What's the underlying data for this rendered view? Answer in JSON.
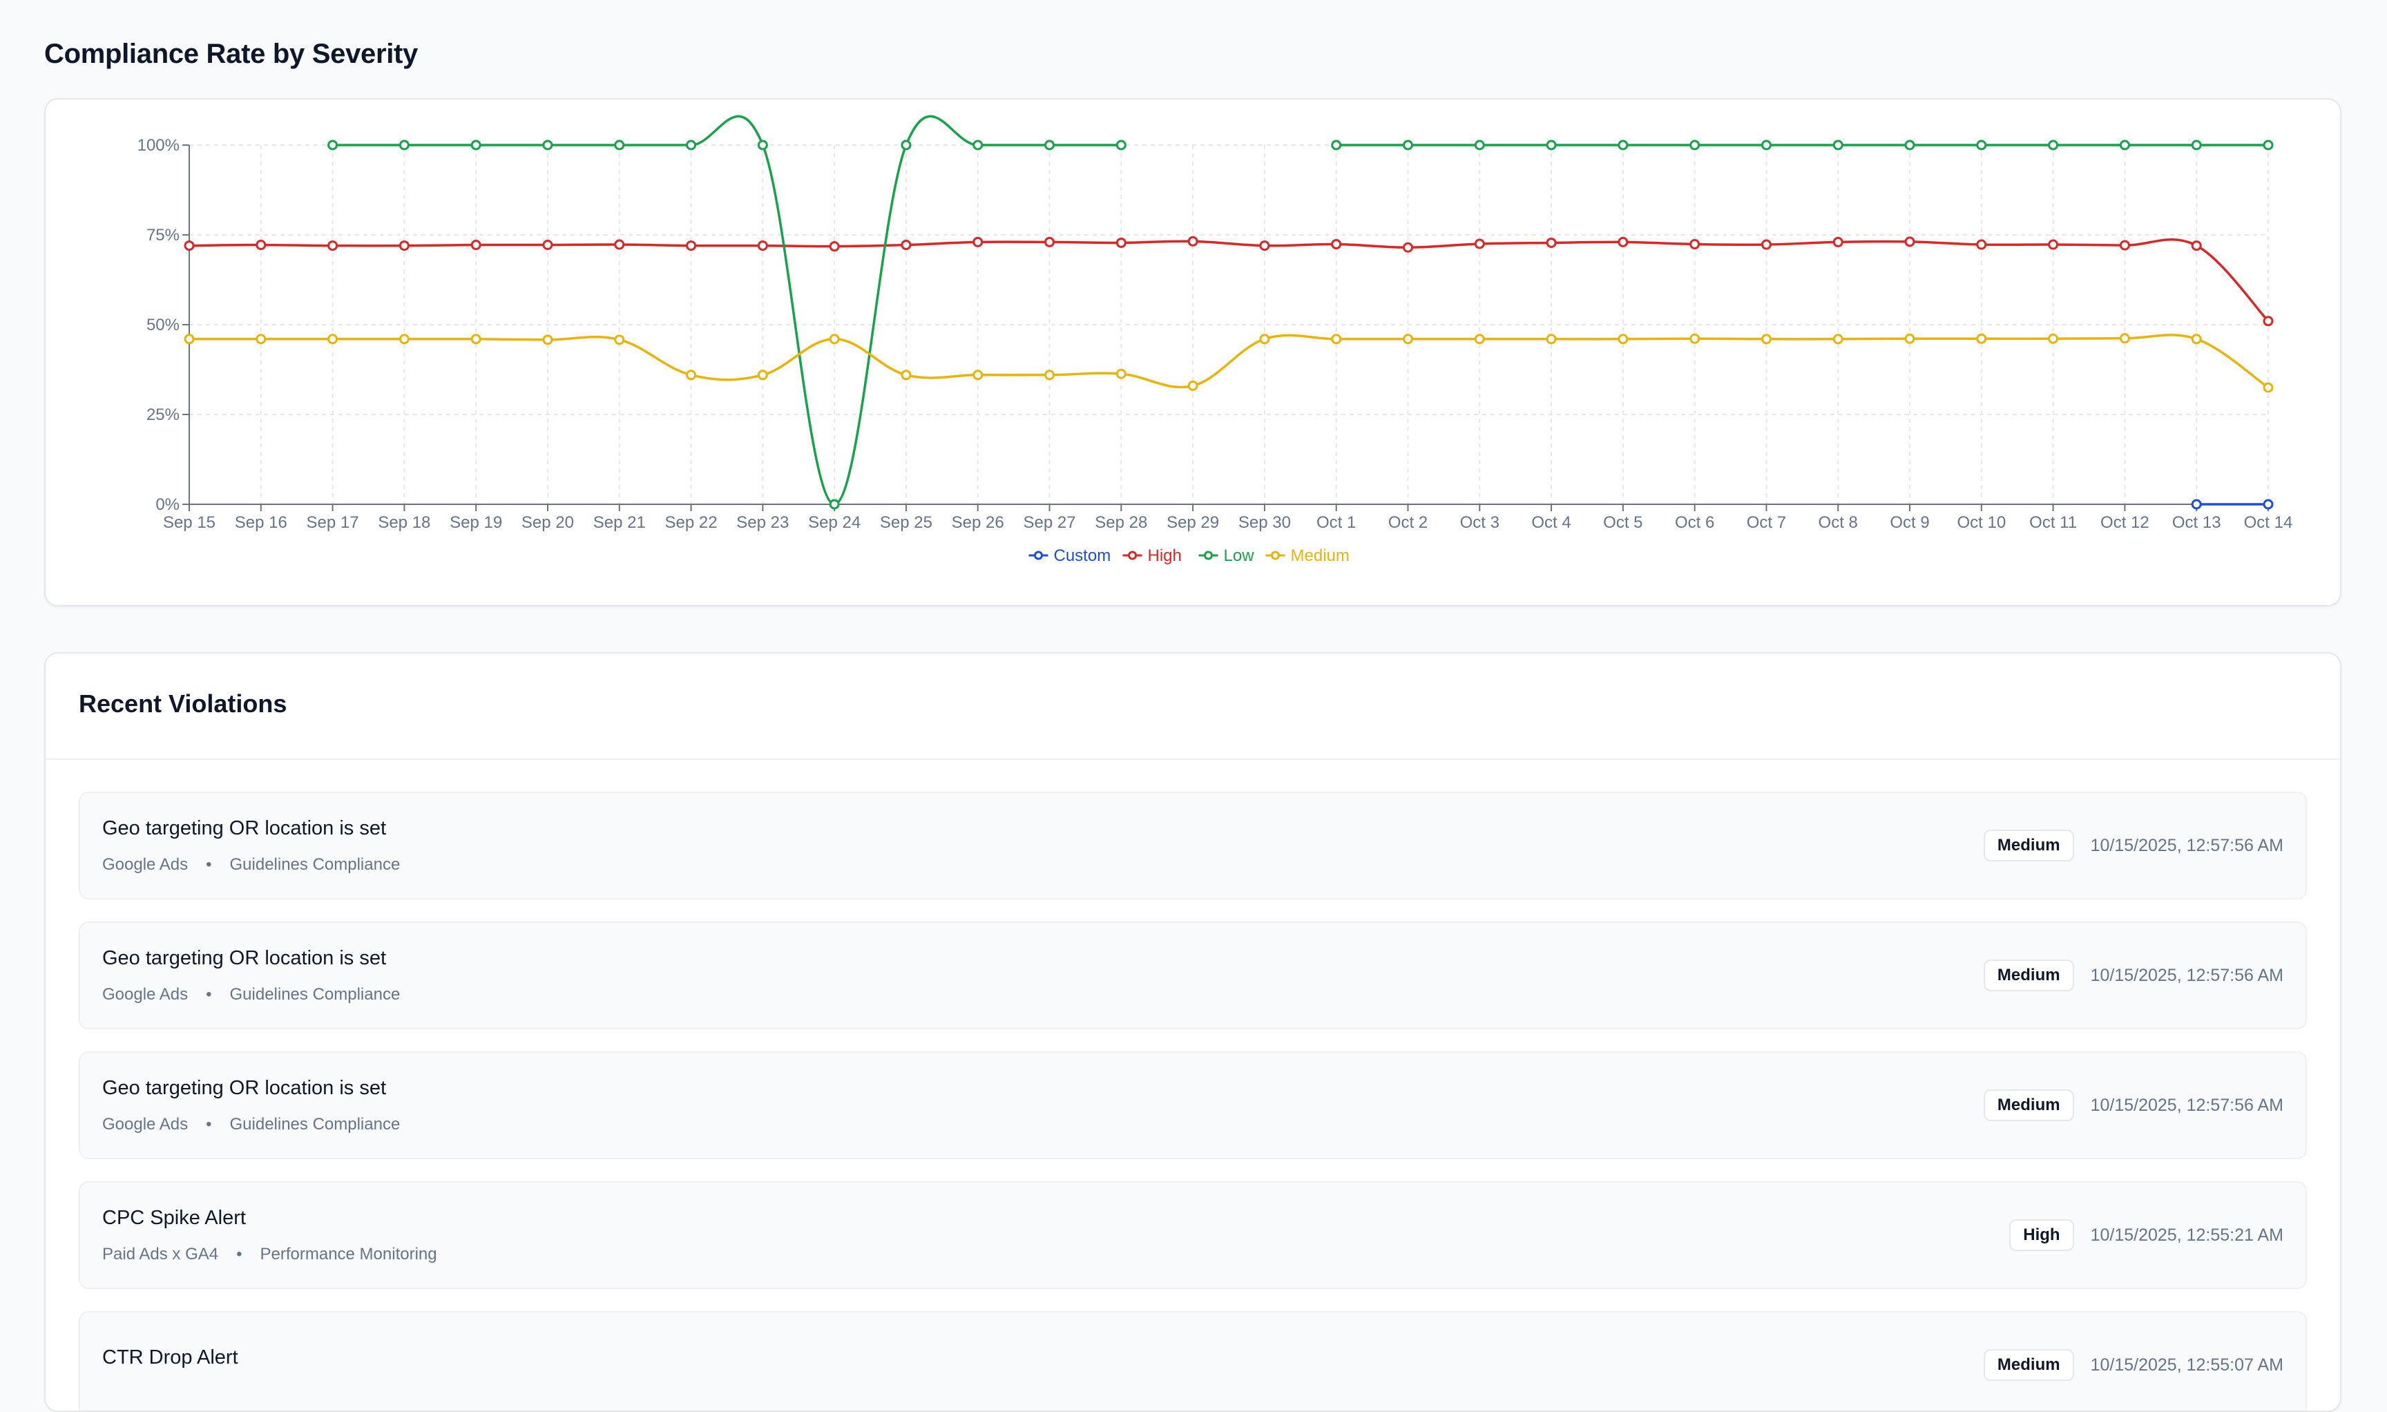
{
  "page": {
    "title": "Compliance Rate by Severity"
  },
  "chart_data": {
    "type": "line",
    "title": "",
    "xlabel": "",
    "ylabel": "",
    "ylim": [
      0,
      100
    ],
    "y_ticks": [
      "0%",
      "25%",
      "50%",
      "75%",
      "100%"
    ],
    "y_tick_values": [
      0,
      25,
      50,
      75,
      100
    ],
    "grid": true,
    "legend": "bottom-center",
    "categories": [
      "Sep 15",
      "Sep 16",
      "Sep 17",
      "Sep 18",
      "Sep 19",
      "Sep 20",
      "Sep 21",
      "Sep 22",
      "Sep 23",
      "Sep 24",
      "Sep 25",
      "Sep 26",
      "Sep 27",
      "Sep 28",
      "Sep 29",
      "Sep 30",
      "Oct 1",
      "Oct 2",
      "Oct 3",
      "Oct 4",
      "Oct 5",
      "Oct 6",
      "Oct 7",
      "Oct 8",
      "Oct 9",
      "Oct 10",
      "Oct 11",
      "Oct 12",
      "Oct 13",
      "Oct 14"
    ],
    "series": [
      {
        "name": "Custom",
        "color": "#1d4ed8",
        "values": [
          null,
          null,
          null,
          null,
          null,
          null,
          null,
          null,
          null,
          null,
          null,
          null,
          null,
          null,
          null,
          null,
          null,
          null,
          null,
          null,
          null,
          null,
          null,
          null,
          null,
          null,
          null,
          null,
          0,
          0
        ]
      },
      {
        "name": "High",
        "color": "#dc2626",
        "values": [
          72,
          72.2,
          72,
          72,
          72.2,
          72.2,
          72.3,
          72,
          72,
          71.8,
          72.2,
          73,
          73,
          72.8,
          73.2,
          72,
          72.4,
          71.5,
          72.5,
          72.8,
          73,
          72.4,
          72.3,
          73,
          73.1,
          72.3,
          72.3,
          72.1,
          72,
          51
        ]
      },
      {
        "name": "Low",
        "color": "#16a34a",
        "values": [
          null,
          null,
          100,
          100,
          100,
          100,
          100,
          100,
          100,
          0,
          100,
          100,
          100,
          100,
          null,
          null,
          100,
          100,
          100,
          100,
          100,
          100,
          100,
          100,
          100,
          100,
          100,
          100,
          100,
          100
        ]
      },
      {
        "name": "Medium",
        "color": "#eab308",
        "values": [
          46,
          46,
          46,
          46,
          46,
          45.8,
          45.8,
          36,
          36,
          46,
          36,
          36,
          36,
          36.3,
          33,
          46,
          46,
          46,
          46,
          46,
          46,
          46.1,
          46,
          46,
          46.1,
          46.1,
          46.1,
          46.2,
          46,
          32.5
        ]
      }
    ]
  },
  "violations": {
    "title": "Recent Violations",
    "items": [
      {
        "title": "Geo targeting OR location is set",
        "platform": "Google Ads",
        "separator": "•",
        "category": "Guidelines Compliance",
        "severity": "Medium",
        "timestamp": "10/15/2025, 12:57:56 AM"
      },
      {
        "title": "Geo targeting OR location is set",
        "platform": "Google Ads",
        "separator": "•",
        "category": "Guidelines Compliance",
        "severity": "Medium",
        "timestamp": "10/15/2025, 12:57:56 AM"
      },
      {
        "title": "Geo targeting OR location is set",
        "platform": "Google Ads",
        "separator": "•",
        "category": "Guidelines Compliance",
        "severity": "Medium",
        "timestamp": "10/15/2025, 12:57:56 AM"
      },
      {
        "title": "CPC Spike Alert",
        "platform": "Paid Ads x GA4",
        "separator": "•",
        "category": "Performance Monitoring",
        "severity": "High",
        "timestamp": "10/15/2025, 12:55:21 AM"
      },
      {
        "title": "CTR Drop Alert",
        "platform": "",
        "separator": "",
        "category": "",
        "severity": "Medium",
        "timestamp": "10/15/2025, 12:55:07 AM"
      }
    ]
  }
}
